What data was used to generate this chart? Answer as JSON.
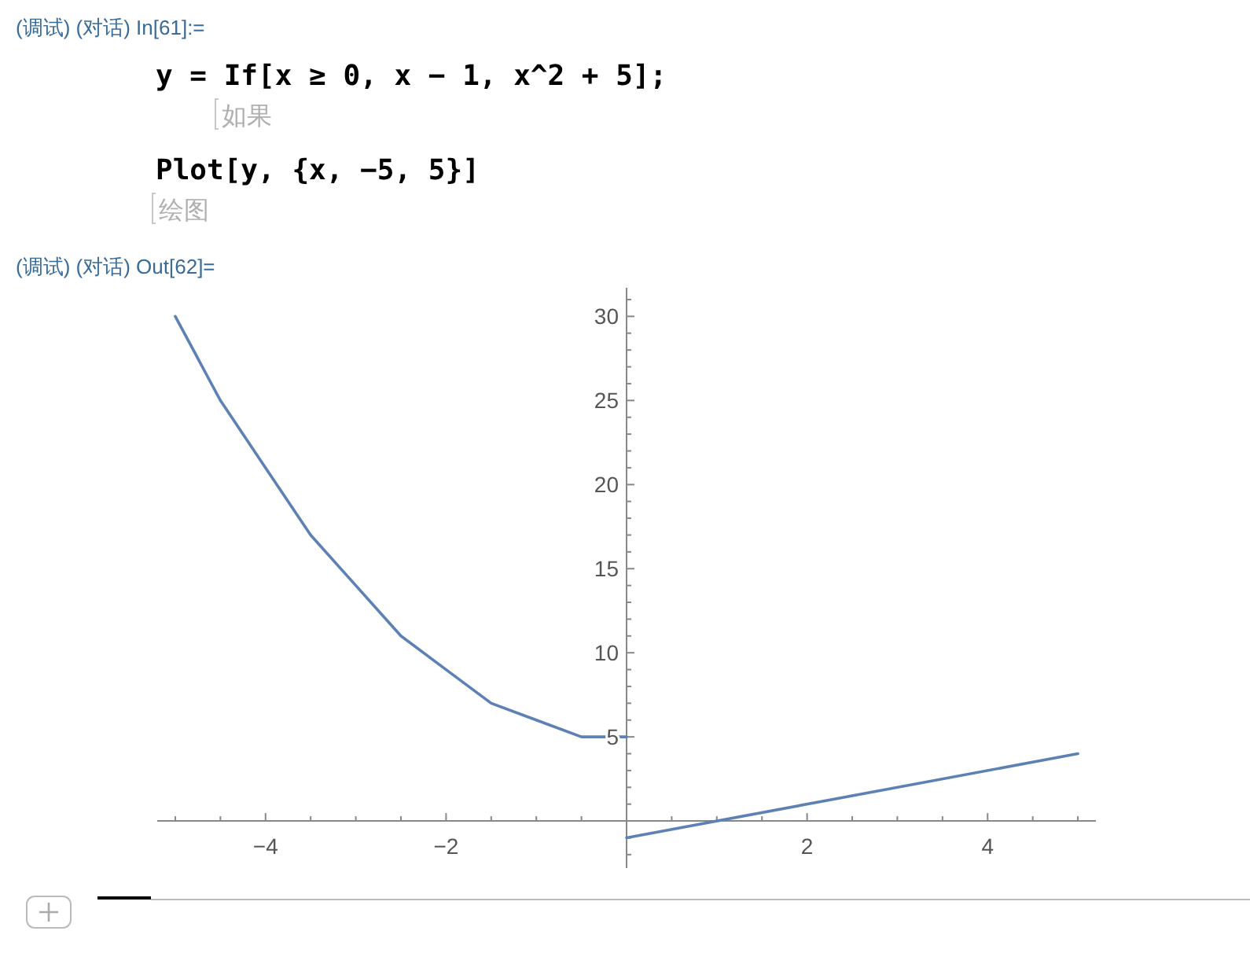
{
  "chart_data": {
    "type": "line",
    "annotations": [
      "(调试) (对话) In[61]:=",
      "y = If[x ≥ 0, x − 1, x^2 + 5];",
      "如果",
      "Plot[y, {x, −5, 5}]",
      "绘图",
      "(调试) (对话) Out[62]="
    ],
    "series": [
      {
        "color": "#5e81b5",
        "x": [
          -5,
          -4.5,
          -4,
          -3.5,
          -3,
          -2.5,
          -2,
          -1.5,
          -1,
          -0.5,
          0
        ],
        "values": [
          30,
          25,
          21,
          17,
          14,
          11,
          9,
          7,
          6,
          5,
          5
        ]
      },
      {
        "color": "#5e81b5",
        "x": [
          0,
          5
        ],
        "values": [
          -1,
          4
        ]
      }
    ],
    "xlim": [
      -5.2,
      5.2
    ],
    "ylim": [
      -2.8,
      31.7
    ],
    "xticks": [
      {
        "value": -5,
        "label": null
      },
      {
        "value": -4.5,
        "label": null
      },
      {
        "value": -4,
        "label": "−4"
      },
      {
        "value": -3.5,
        "label": null
      },
      {
        "value": -3,
        "label": null
      },
      {
        "value": -2.5,
        "label": null
      },
      {
        "value": -2,
        "label": "−2"
      },
      {
        "value": -1.5,
        "label": null
      },
      {
        "value": -1,
        "label": null
      },
      {
        "value": -0.5,
        "label": null
      },
      {
        "value": 0.5,
        "label": null
      },
      {
        "value": 1,
        "label": null
      },
      {
        "value": 1.5,
        "label": null
      },
      {
        "value": 2,
        "label": "2"
      },
      {
        "value": 2.5,
        "label": null
      },
      {
        "value": 3,
        "label": null
      },
      {
        "value": 3.5,
        "label": null
      },
      {
        "value": 4,
        "label": "4"
      },
      {
        "value": 4.5,
        "label": null
      },
      {
        "value": 5,
        "label": null
      }
    ],
    "yticks": [
      {
        "value": -2,
        "label": null
      },
      {
        "value": -1,
        "label": null
      },
      {
        "value": 1,
        "label": null
      },
      {
        "value": 2,
        "label": null
      },
      {
        "value": 3,
        "label": null
      },
      {
        "value": 4,
        "label": null
      },
      5,
      {
        "value": 6,
        "label": null
      },
      {
        "value": 7,
        "label": null
      },
      {
        "value": 8,
        "label": null
      },
      {
        "value": 9,
        "label": null
      },
      10,
      {
        "value": 11,
        "label": null
      },
      {
        "value": 12,
        "label": null
      },
      {
        "value": 13,
        "label": null
      },
      {
        "value": 14,
        "label": null
      },
      15,
      {
        "value": 16,
        "label": null
      },
      {
        "value": 17,
        "label": null
      },
      {
        "value": 18,
        "label": null
      },
      {
        "value": 19,
        "label": null
      },
      20,
      {
        "value": 21,
        "label": null
      },
      {
        "value": 22,
        "label": null
      },
      {
        "value": 23,
        "label": null
      },
      {
        "value": 24,
        "label": null
      },
      25,
      {
        "value": 26,
        "label": null
      },
      {
        "value": 27,
        "label": null
      },
      {
        "value": 28,
        "label": null
      },
      {
        "value": 29,
        "label": null
      },
      30,
      {
        "value": 31,
        "label": null
      }
    ],
    "grid": false
  }
}
